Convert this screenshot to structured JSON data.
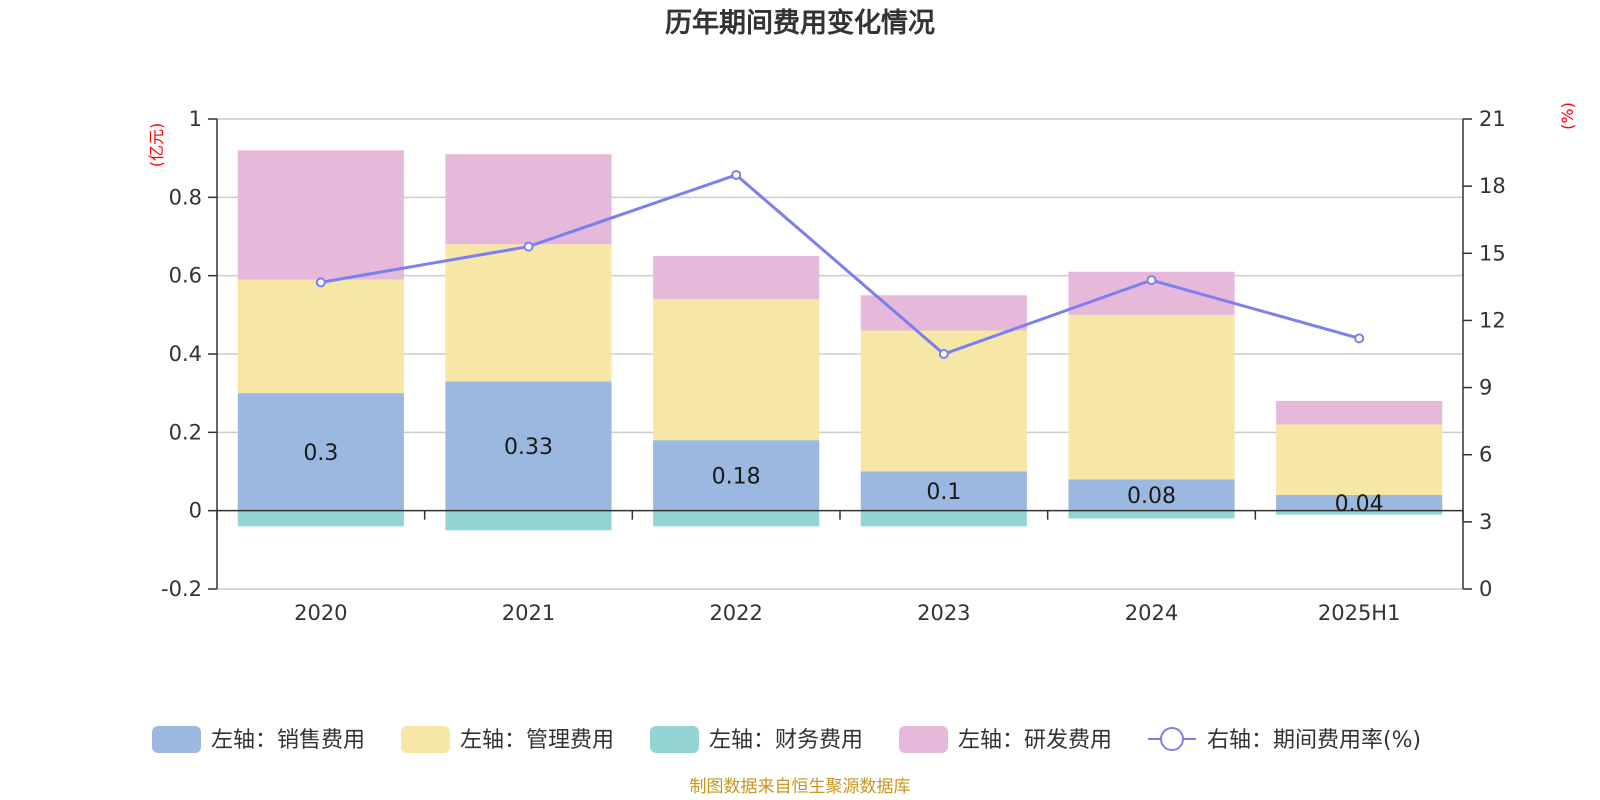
{
  "chart_data": {
    "type": "bar",
    "title": "历年期间费用变化情况",
    "categories": [
      "2020",
      "2021",
      "2022",
      "2023",
      "2024",
      "2025H1"
    ],
    "left_axis": {
      "unit": "(亿元)",
      "ylim": [
        -0.2,
        1
      ],
      "ticks": [
        "-0.2",
        "0",
        "0.2",
        "0.4",
        "0.6",
        "0.8",
        "1"
      ]
    },
    "right_axis": {
      "unit": "(%)",
      "ylim": [
        0,
        21
      ],
      "ticks": [
        "0",
        "3",
        "6",
        "9",
        "12",
        "15",
        "18",
        "21"
      ]
    },
    "grid": true,
    "stacked": true,
    "series": [
      {
        "name": "左轴：销售费用",
        "axis": "left",
        "type": "bar",
        "color": "#9bb8e0",
        "values": [
          0.3,
          0.33,
          0.18,
          0.1,
          0.08,
          0.04
        ],
        "labels": [
          "0.3",
          "0.33",
          "0.18",
          "0.1",
          "0.08",
          "0.04"
        ]
      },
      {
        "name": "左轴：管理费用",
        "axis": "left",
        "type": "bar",
        "color": "#f7e7a6",
        "values": [
          0.29,
          0.35,
          0.36,
          0.36,
          0.42,
          0.18
        ]
      },
      {
        "name": "左轴：财务费用",
        "axis": "left",
        "type": "bar",
        "color": "#94d5d4",
        "values": [
          -0.04,
          -0.05,
          -0.04,
          -0.04,
          -0.02,
          -0.01
        ]
      },
      {
        "name": "左轴：研发费用",
        "axis": "left",
        "type": "bar",
        "color": "#e6b8da",
        "values": [
          0.33,
          0.23,
          0.11,
          0.09,
          0.11,
          0.06
        ]
      },
      {
        "name": "右轴：期间费用率(%)",
        "axis": "right",
        "type": "line",
        "color": "#7b7fef",
        "values": [
          13.7,
          15.3,
          18.5,
          10.5,
          13.8,
          11.2
        ]
      }
    ],
    "legend_position": "bottom",
    "source": "制图数据来自恒生聚源数据库"
  }
}
